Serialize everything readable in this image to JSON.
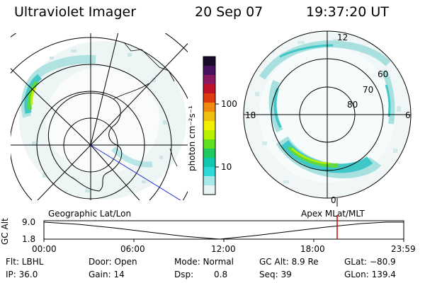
{
  "header": {
    "instrument": "Ultraviolet Imager",
    "date": "20 Sep 07",
    "time": "19:37:20 UT"
  },
  "colorbar": {
    "unit_label": "photon cm⁻²s⁻¹",
    "ticks": [
      "100",
      "10"
    ],
    "colors": [
      "#1a0a2a",
      "#4a1060",
      "#8a1a60",
      "#c0102a",
      "#e03a10",
      "#f08a10",
      "#f0c010",
      "#f0f000",
      "#b8f000",
      "#60e020",
      "#20c860",
      "#10c8b0",
      "#30d8d8",
      "#a8e8e8",
      "#e8f4f4"
    ]
  },
  "left_map": {
    "label": "Geographic Lat/Lon"
  },
  "right_map": {
    "label": "Apex  MLat/MLT",
    "mlt_labels": {
      "top": "12",
      "left": "18",
      "right": "6",
      "bottom": "0"
    },
    "mlat_labels": [
      "60",
      "70",
      "80"
    ]
  },
  "altitude_plot": {
    "ylabel": "GC Alt",
    "yticks": [
      "9.0",
      "1.8"
    ],
    "xticks": [
      "00:00",
      "06:00",
      "12:00",
      "18:00",
      "23:59"
    ],
    "marker_color": "#e00000"
  },
  "info": {
    "filter": "Flt: LBHL",
    "ip": "IP: 36.0",
    "door": "Door: Open",
    "gain": "Gain: 14",
    "mode": "Mode: Normal",
    "dsp_label": "Dsp:",
    "dsp_value": "0.8",
    "gc_alt": "GC Alt: 8.9 Re",
    "seq": "Seq: 39",
    "glat": "GLat: −80.9",
    "glon": "GLon: 139.4"
  }
}
